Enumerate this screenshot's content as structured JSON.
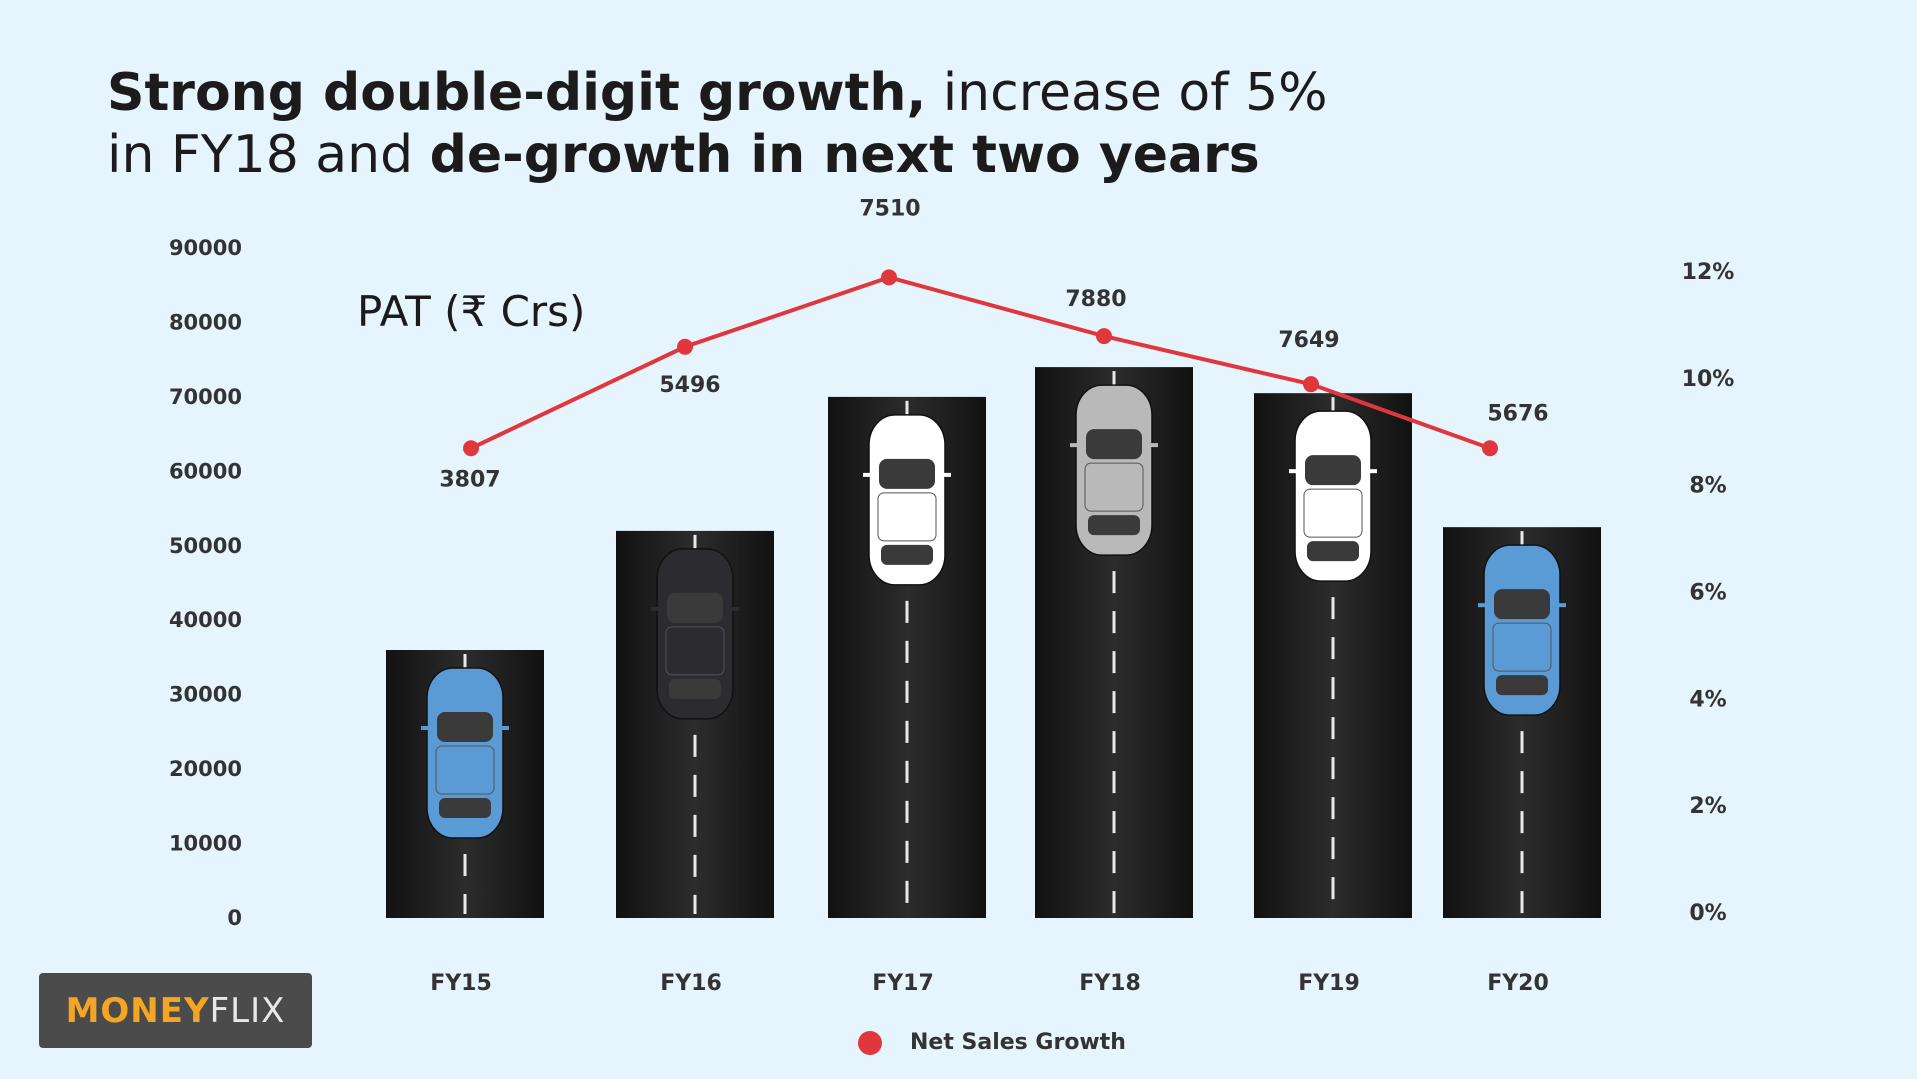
{
  "title": {
    "part1_bold": "Strong double-digit growth,",
    "part1_regular": " increase of 5%",
    "part2_regular": "in FY18 and ",
    "part2_bold": "de-growth in next two years"
  },
  "logo": {
    "part1": "MONEY",
    "part2": "FLIX"
  },
  "chart_data": {
    "type": "bar",
    "categories": [
      "FY15",
      "FY16",
      "FY17",
      "FY18",
      "FY19",
      "FY20"
    ],
    "bar_series": {
      "name": "",
      "values": [
        36000,
        52000,
        70000,
        74000,
        70500,
        52500
      ],
      "ylim": [
        0,
        90000
      ],
      "yticks": [
        0,
        10000,
        20000,
        30000,
        40000,
        50000,
        60000,
        70000,
        80000,
        90000
      ]
    },
    "line_series": {
      "name": "Net Sales Growth",
      "values": [
        8.7,
        10.6,
        11.9,
        10.8,
        9.9,
        8.7
      ],
      "point_labels": [
        "3807",
        "5496",
        "7510",
        "7880",
        "7649",
        "5676"
      ],
      "ylim": [
        0,
        12
      ],
      "yticks": [
        "0%",
        "2%",
        "4%",
        "6%",
        "8%",
        "10%",
        "12%"
      ],
      "color": "#e0373d"
    },
    "annotation": "PAT (₹ Crs)",
    "legend": {
      "label": "Net Sales Growth",
      "position": "bottom-center"
    },
    "car_colors": [
      "#5b9bd5",
      "#2b2b30",
      "#ffffff",
      "#b9b9b9",
      "#ffffff",
      "#5b9bd5"
    ],
    "bar_color": "#1c1c1c",
    "grid": false
  }
}
